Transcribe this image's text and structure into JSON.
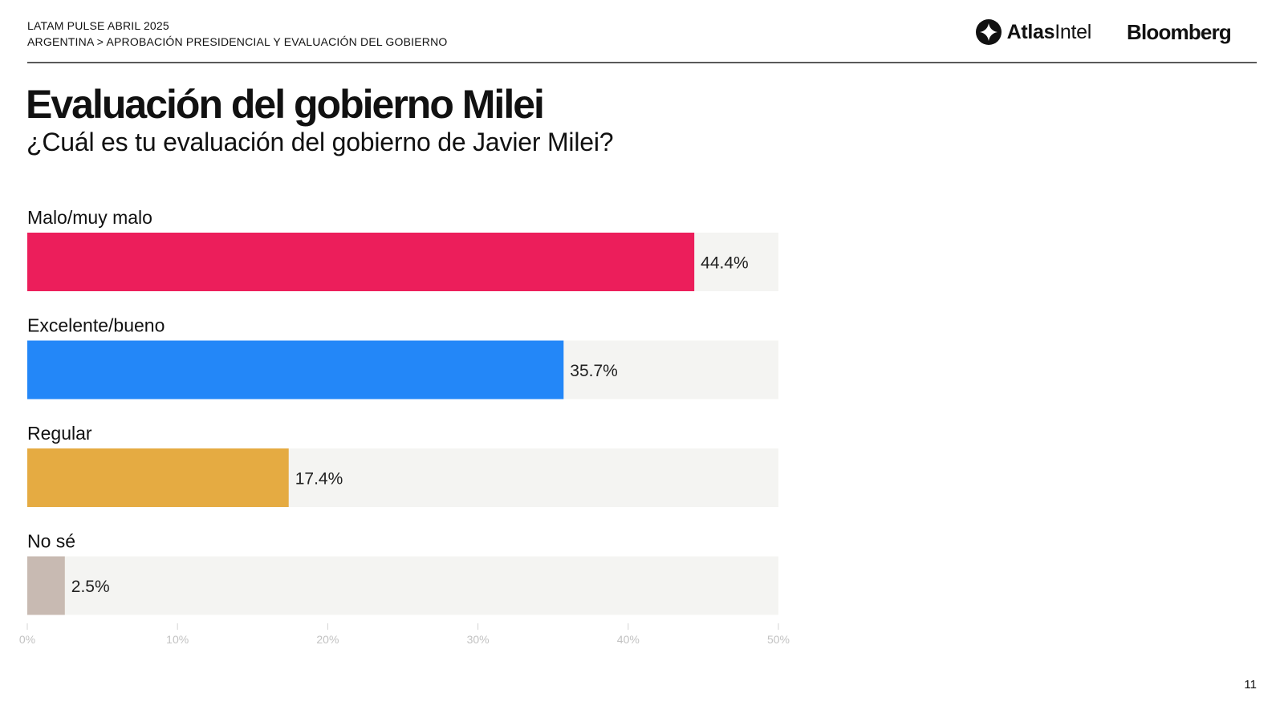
{
  "header": {
    "line1": "LATAM PULSE ABRIL 2025",
    "line2": "ARGENTINA > APROBACIÓN PRESIDENCIAL Y EVALUACIÓN DEL GOBIERNO"
  },
  "logos": {
    "atlas_bold": "Atlas",
    "atlas_light": "Intel",
    "bloomberg": "Bloomberg"
  },
  "page": {
    "title": "Evaluación del gobierno Milei",
    "subtitle": "¿Cuál es tu evaluación del gobierno de Javier Milei?",
    "page_number": "11"
  },
  "chart_data": {
    "type": "bar",
    "orientation": "horizontal",
    "categories": [
      "Malo/muy malo",
      "Excelente/bueno",
      "Regular",
      "No sé"
    ],
    "values": [
      44.4,
      35.7,
      17.4,
      2.5
    ],
    "value_labels": [
      "44.4%",
      "35.7%",
      "17.4%",
      "2.5%"
    ],
    "colors": [
      "#EC1E5B",
      "#2387F8",
      "#E5AB42",
      "#C8BAB2"
    ],
    "track_color": "#F4F4F2",
    "xlim": [
      0,
      50
    ],
    "xticks": [
      0,
      10,
      20,
      30,
      40,
      50
    ],
    "xtick_labels": [
      "0%",
      "10%",
      "20%",
      "30%",
      "40%",
      "50%"
    ],
    "grid": false,
    "legend": "none"
  }
}
